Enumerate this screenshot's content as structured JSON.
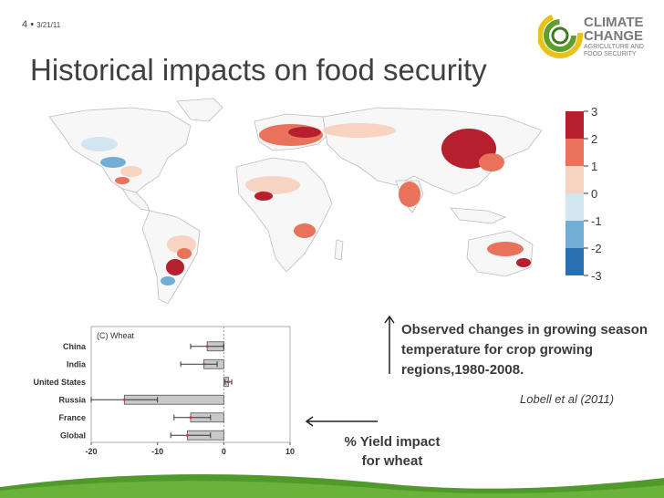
{
  "slide": {
    "number": "4",
    "separator": "•",
    "date": "3/21/11",
    "title": "Historical impacts on food security"
  },
  "logo": {
    "line1": "CLIMATE",
    "line2": "CHANGE",
    "line3": "AGRICULTURE AND",
    "line4": "FOOD SECURITY"
  },
  "colors": {
    "dark_red": "#b51f2e",
    "red": "#e8735a",
    "light_red": "#f7d3c2",
    "light_blue": "#d2e6f0",
    "blue": "#72aed3",
    "dark_blue": "#2a6fb0",
    "land": "#f7f7f7",
    "border": "#bdbdbd",
    "green_band": "#4f9a2a"
  },
  "legend": {
    "labels": [
      "3",
      "2",
      "1",
      "0",
      "-1",
      "-2",
      "-3"
    ]
  },
  "caption": {
    "text": "Observed changes in growing season temperature for crop growing regions,1980-2008.",
    "citation": "Lobell et al (2011)",
    "yield_line1": "% Yield impact",
    "yield_line2": "for wheat"
  },
  "chart_data": {
    "type": "bar",
    "title": "(C) Wheat",
    "orientation": "horizontal",
    "categories": [
      "China",
      "India",
      "United States",
      "Russia",
      "France",
      "Global"
    ],
    "values": [
      -2.5,
      -3.0,
      0.7,
      -15.0,
      -5.0,
      -5.5
    ],
    "error_low": [
      -5.0,
      -6.5,
      0.2,
      -20.0,
      -7.5,
      -8.0
    ],
    "error_high": [
      0.0,
      -1.0,
      1.2,
      -10.0,
      -2.0,
      -2.0
    ],
    "xlabel": "",
    "xlim": [
      -20,
      10
    ],
    "xticks": [
      "-20",
      "-10",
      "0",
      "10"
    ]
  }
}
